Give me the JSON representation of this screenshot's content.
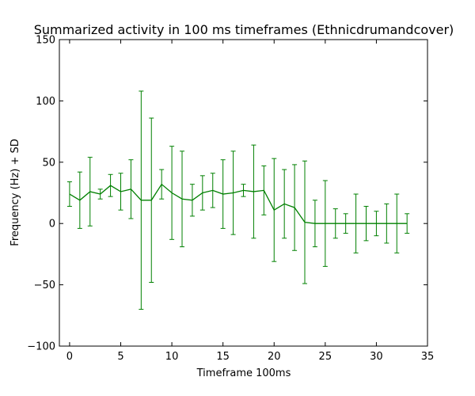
{
  "chart_data": {
    "type": "line",
    "title": "Summarized activity in 100 ms timeframes (Ethnicdrumandcover)",
    "xlabel": "Timeframe 100ms",
    "ylabel": "Frequency (Hz) + SD",
    "xlim": [
      -1,
      35
    ],
    "ylim": [
      -100,
      150
    ],
    "xticks": [
      0,
      5,
      10,
      15,
      20,
      25,
      30,
      35
    ],
    "yticks": [
      -100,
      -50,
      0,
      50,
      100,
      150
    ],
    "xtick_labels": [
      "0",
      "5",
      "10",
      "15",
      "20",
      "25",
      "30",
      "35"
    ],
    "ytick_labels": [
      "−100",
      "−50",
      "0",
      "50",
      "100",
      "150"
    ],
    "grid": false,
    "series": [
      {
        "color": "#008000",
        "x": [
          0,
          1,
          2,
          3,
          4,
          5,
          6,
          7,
          8,
          9,
          10,
          11,
          12,
          13,
          14,
          15,
          16,
          17,
          18,
          19,
          20,
          21,
          22,
          23,
          24,
          25,
          26,
          27,
          28,
          29,
          30,
          31,
          32,
          33
        ],
        "values": [
          24,
          19,
          26,
          24,
          31,
          26,
          28,
          19,
          19,
          32,
          25,
          20,
          19,
          25,
          27,
          24,
          25,
          27,
          26,
          27,
          11,
          16,
          13,
          1,
          0,
          0,
          0,
          0,
          0,
          0,
          0,
          0,
          0,
          0
        ],
        "error": [
          10,
          23,
          28,
          4,
          9,
          15,
          24,
          89,
          67,
          12,
          38,
          39,
          13,
          14,
          14,
          28,
          34,
          5,
          38,
          20,
          42,
          28,
          35,
          50,
          19,
          35,
          12,
          8,
          24,
          14,
          10,
          16,
          24,
          8
        ]
      }
    ]
  }
}
